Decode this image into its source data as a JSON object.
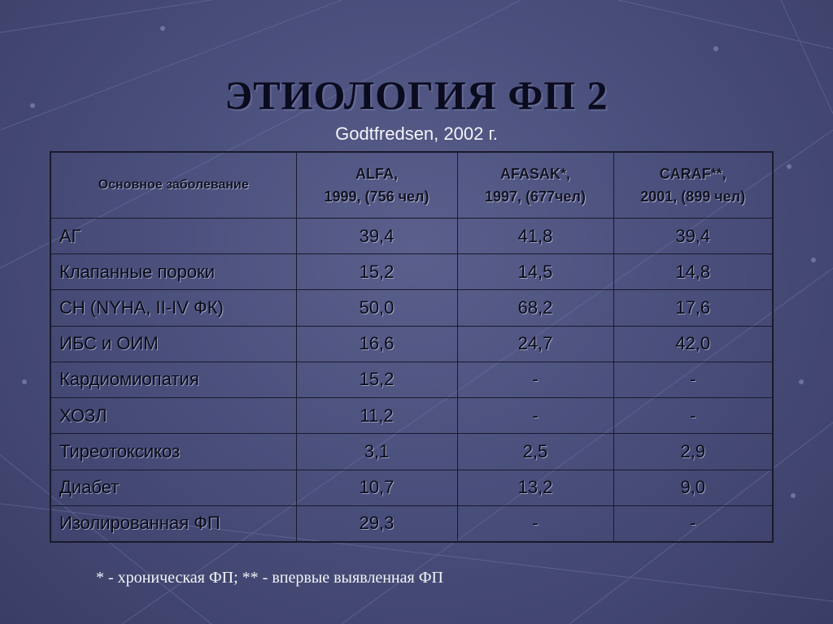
{
  "title": "ЭТИОЛОГИЯ ФП 2",
  "subtitle": "Godtfredsen, 2002 г.",
  "table": {
    "headers": [
      {
        "line1": "Основное заболевание",
        "line2": ""
      },
      {
        "line1": "ALFA,",
        "line2": "1999, (756 чел)"
      },
      {
        "line1": "AFASAK*,",
        "line2": "1997, (677чел)"
      },
      {
        "line1": "CARAF**,",
        "line2": "2001, (899 чел)"
      }
    ],
    "rows": [
      [
        "АГ",
        "39,4",
        "41,8",
        "39,4"
      ],
      [
        "Клапанные  пороки",
        "15,2",
        "14,5",
        "14,8"
      ],
      [
        "СН (NYHA, II-IV ФК)",
        "50,0",
        "68,2",
        "17,6"
      ],
      [
        "ИБС и ОИМ",
        "16,6",
        "24,7",
        "42,0"
      ],
      [
        "Кардиомиопатия",
        "15,2",
        "-",
        "-"
      ],
      [
        "ХОЗЛ",
        "11,2",
        "-",
        "-"
      ],
      [
        "Тиреотоксикоз",
        "3,1",
        "2,5",
        "2,9"
      ],
      [
        "Диабет",
        "10,7",
        "13,2",
        "9,0"
      ],
      [
        "Изолированная  ФП",
        "29,3",
        "-",
        "-"
      ]
    ]
  },
  "footnote": "* - хроническая ФП;  ** - впервые выявленная ФП",
  "colors": {
    "background": "#4a4f7c",
    "title": "#0b0b1e",
    "text_light": "#f4f4f8",
    "grid": "#1a1a2a"
  }
}
